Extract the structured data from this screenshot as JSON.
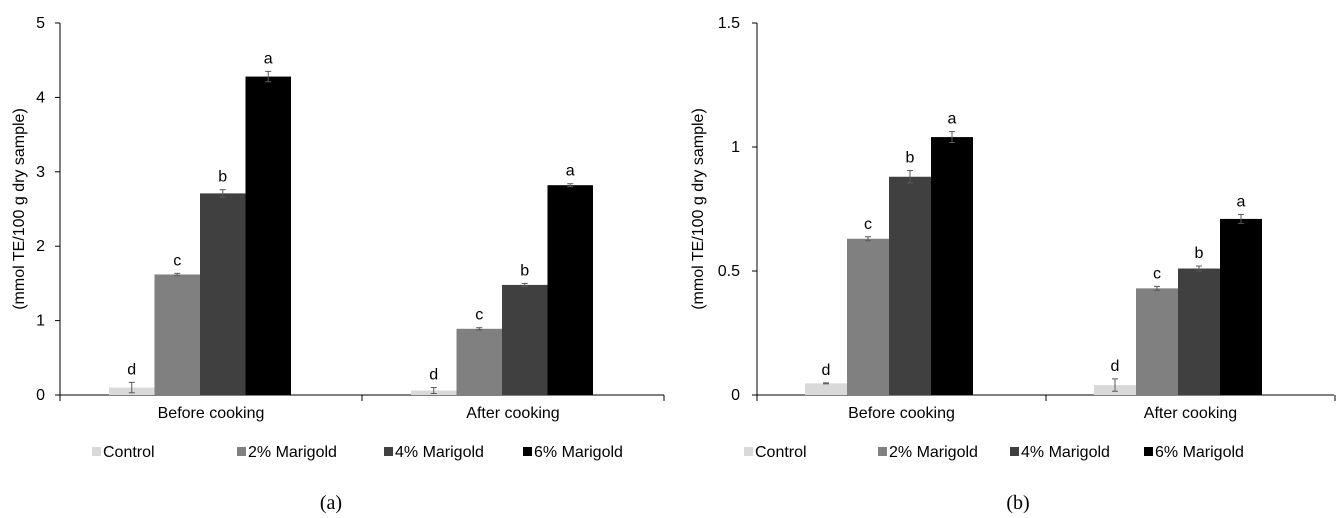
{
  "chart_data": [
    {
      "type": "bar",
      "panel_label": "(a)",
      "ylabel": "(mmol TE/100 g dry sample)",
      "ylim": [
        0,
        5
      ],
      "yticks": [
        "0",
        "1",
        "2",
        "3",
        "4",
        "5"
      ],
      "ytick_values": [
        0,
        1,
        2,
        3,
        4,
        5
      ],
      "categories": [
        "Before cooking",
        "After cooking"
      ],
      "legend_position": "bottom",
      "series": [
        {
          "name": "Control",
          "color": "#d9d9d9",
          "values": [
            0.1,
            0.06
          ],
          "errors": [
            0.07,
            0.04
          ],
          "letters": [
            "d",
            "d"
          ]
        },
        {
          "name": "2% Marigold",
          "color": "#808080",
          "values": [
            1.62,
            0.89
          ],
          "errors": [
            0.015,
            0.015
          ],
          "letters": [
            "c",
            "c"
          ]
        },
        {
          "name": "4% Marigold",
          "color": "#404040",
          "values": [
            2.71,
            1.48
          ],
          "errors": [
            0.05,
            0.02
          ],
          "letters": [
            "b",
            "b"
          ]
        },
        {
          "name": "6% Marigold",
          "color": "#000000",
          "values": [
            4.28,
            2.82
          ],
          "errors": [
            0.07,
            0.02
          ],
          "letters": [
            "a",
            "a"
          ]
        }
      ]
    },
    {
      "type": "bar",
      "panel_label": "(b)",
      "ylabel": "(mmol TE/100 g dry sample)",
      "ylim": [
        0,
        1.5
      ],
      "yticks": [
        "0",
        "0.5",
        "1",
        "1.5"
      ],
      "ytick_values": [
        0,
        0.5,
        1,
        1.5
      ],
      "categories": [
        "Before cooking",
        "After cooking"
      ],
      "legend_position": "bottom",
      "series": [
        {
          "name": "Control",
          "color": "#d9d9d9",
          "values": [
            0.047,
            0.04
          ],
          "errors": [
            0.002,
            0.025
          ],
          "letters": [
            "d",
            "d"
          ]
        },
        {
          "name": "2% Marigold",
          "color": "#808080",
          "values": [
            0.63,
            0.43
          ],
          "errors": [
            0.008,
            0.008
          ],
          "letters": [
            "c",
            "c"
          ]
        },
        {
          "name": "4% Marigold",
          "color": "#404040",
          "values": [
            0.88,
            0.51
          ],
          "errors": [
            0.025,
            0.01
          ],
          "letters": [
            "b",
            "b"
          ]
        },
        {
          "name": "6% Marigold",
          "color": "#000000",
          "values": [
            1.04,
            0.71
          ],
          "errors": [
            0.022,
            0.018
          ],
          "letters": [
            "a",
            "a"
          ]
        }
      ]
    }
  ]
}
